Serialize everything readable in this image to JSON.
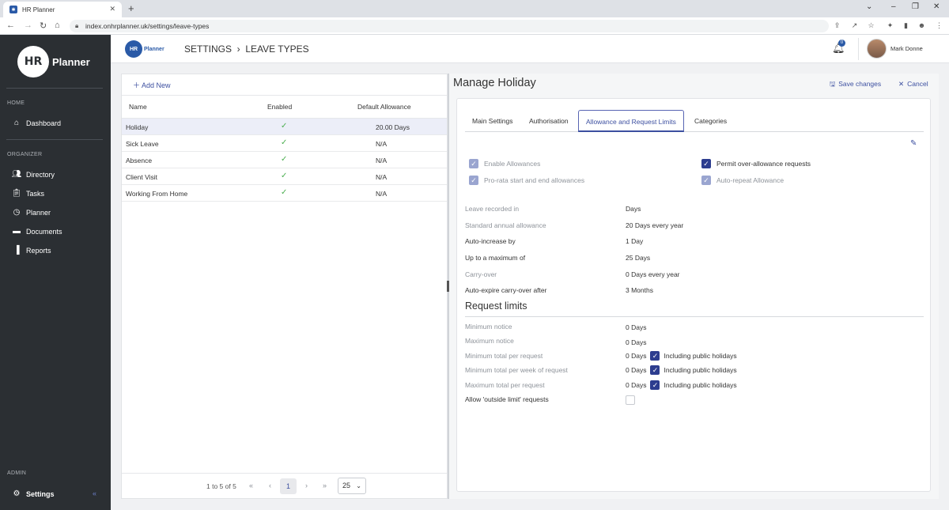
{
  "browser": {
    "tab_title": "HR Planner",
    "url": "index.onhrplanner.uk/settings/leave-types"
  },
  "sidebar": {
    "logo_hr": "HR",
    "logo_planner": "Planner",
    "sections": {
      "home": "HOME",
      "organizer": "ORGANIZER",
      "admin": "ADMIN"
    },
    "items": {
      "dashboard": "Dashboard",
      "directory": "Directory",
      "tasks": "Tasks",
      "planner": "Planner",
      "documents": "Documents",
      "reports": "Reports",
      "settings": "Settings"
    },
    "collapse_label": "«"
  },
  "topbar": {
    "small_logo_hr": "HR",
    "small_logo_text": "Planner",
    "breadcrumb": "SETTINGS  ›  LEAVE TYPES",
    "notification_count": "0",
    "user_name": "Mark Donne"
  },
  "leave_list": {
    "add_new": "Add New",
    "columns": [
      "Name",
      "Enabled",
      "Default Allowance"
    ],
    "rows": [
      {
        "name": "Holiday",
        "enabled": "✓",
        "allowance": "20.00 Days"
      },
      {
        "name": "Sick Leave",
        "enabled": "✓",
        "allowance": "N/A"
      },
      {
        "name": "Absence",
        "enabled": "✓",
        "allowance": "N/A"
      },
      {
        "name": "Client Visit",
        "enabled": "✓",
        "allowance": "N/A"
      },
      {
        "name": "Working From Home",
        "enabled": "✓",
        "allowance": "N/A"
      }
    ],
    "pager": {
      "info": "1 to 5 of 5",
      "first": "«",
      "prev": "‹",
      "current": "1",
      "next": "›",
      "last": "»",
      "page_size": "25"
    }
  },
  "manage": {
    "title": "Manage Holiday",
    "save": "Save changes",
    "cancel": "Cancel",
    "tabs": [
      "Main Settings",
      "Authorisation",
      "Allowance and Request Limits",
      "Categories"
    ],
    "active_tab": "Allowance and Request Limits",
    "checkboxes": {
      "enable_allowances": "Enable Allowances",
      "prorata": "Pro-rata start and end allowances",
      "permit_over": "Permit over-allowance requests",
      "auto_repeat": "Auto-repeat Allowance"
    },
    "settings": [
      {
        "label": "Leave recorded in",
        "value": "Days"
      },
      {
        "label": "Standard annual allowance",
        "value": "20 Days every year"
      },
      {
        "label": "Auto-increase by",
        "value": "1 Day"
      },
      {
        "label": "Up to a maximum of",
        "value": "25 Days"
      },
      {
        "label": "Carry-over",
        "value": "0 Days every year"
      },
      {
        "label": "Auto-expire carry-over after",
        "value": "3 Months"
      }
    ],
    "request_limits_title": "Request limits",
    "limits": [
      {
        "label": "Minimum notice",
        "value": "0 Days"
      },
      {
        "label": "Maximum notice",
        "value": "0 Days"
      },
      {
        "label": "Minimum total per request",
        "value": "0 Days",
        "extra": "Including public holidays"
      },
      {
        "label": "Minimum total per week of request",
        "value": "0 Days",
        "extra": "Including public holidays"
      },
      {
        "label": "Maximum total per request",
        "value": "0 Days",
        "extra": "Including public holidays"
      },
      {
        "label": "Allow 'outside limit' requests",
        "value": ""
      }
    ]
  }
}
